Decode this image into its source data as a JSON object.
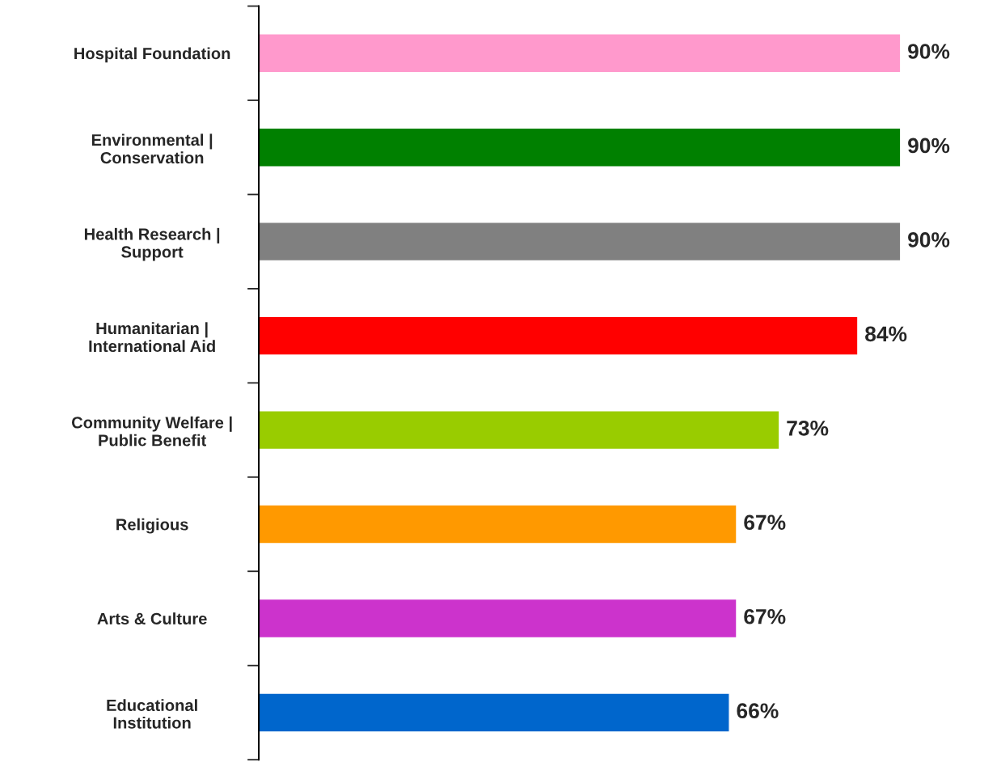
{
  "chart_data": {
    "type": "bar",
    "orientation": "horizontal",
    "categories": [
      "Hospital Foundation",
      "Environmental |\nConservation",
      "Health Research |\nSupport",
      "Humanitarian |\nInternational Aid",
      "Community Welfare |\nPublic Benefit",
      "Religious",
      "Arts & Culture",
      "Educational\nInstitution"
    ],
    "values": [
      90,
      90,
      90,
      84,
      73,
      67,
      67,
      66
    ],
    "colors": [
      "#ff99cc",
      "#008000",
      "#808080",
      "#ff0000",
      "#99cc00",
      "#ff9900",
      "#cc33cc",
      "#0066cc"
    ],
    "value_labels": [
      "90%",
      "90%",
      "90%",
      "84%",
      "73%",
      "67%",
      "67%",
      "66%"
    ],
    "tick_labels": "y",
    "grid": false,
    "legend": false
  }
}
